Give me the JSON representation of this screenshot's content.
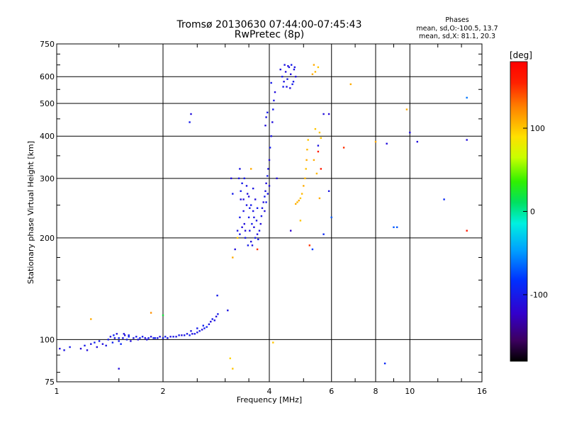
{
  "chart_data": {
    "type": "scatter",
    "title": "Tromsø 20130630 07:44:00-07:45:43",
    "subtitle": "RwPretec (8p)",
    "stats": {
      "heading": "Phases",
      "line1": "mean, sd,O:-100.5, 13.7",
      "line2": "mean, sd,X:  81.1, 20.3"
    },
    "xlabel": "Frequency [MHz]",
    "ylabel": "Stationary phase Virtual Height [km]",
    "x_scale": "log",
    "y_scale": "log",
    "xlim": [
      1,
      16
    ],
    "ylim": [
      75,
      750
    ],
    "x_ticks": [
      1,
      2,
      4,
      6,
      8,
      10,
      16
    ],
    "x_tick_labels": [
      "1",
      "2",
      "4",
      "6",
      "8",
      "10",
      "16"
    ],
    "y_ticks": [
      75,
      100,
      200,
      300,
      400,
      500,
      600,
      750
    ],
    "y_tick_labels": [
      "75",
      "100",
      "200",
      "300",
      "400",
      "500",
      "600",
      "750"
    ],
    "grid": true,
    "colorbar": {
      "label": "[deg]",
      "range": [
        -180,
        180
      ],
      "ticks": [
        100,
        0,
        -100
      ],
      "tick_labels": [
        "100",
        "0",
        "-100"
      ]
    },
    "points": [
      [
        1.02,
        94,
        -110
      ],
      [
        1.05,
        93,
        -105
      ],
      [
        1.09,
        95,
        -100
      ],
      [
        1.17,
        94,
        -115
      ],
      [
        1.2,
        96,
        -100
      ],
      [
        1.22,
        93,
        -110
      ],
      [
        1.25,
        97,
        -105
      ],
      [
        1.28,
        98,
        -95
      ],
      [
        1.3,
        95,
        -110
      ],
      [
        1.32,
        99,
        -100
      ],
      [
        1.35,
        97,
        -110
      ],
      [
        1.38,
        96,
        -105
      ],
      [
        1.4,
        100,
        -100
      ],
      [
        1.42,
        102,
        -110
      ],
      [
        1.44,
        98,
        -95
      ],
      [
        1.46,
        101,
        -105
      ],
      [
        1.48,
        104,
        -110
      ],
      [
        1.5,
        99,
        -100
      ],
      [
        1.52,
        97,
        -90
      ],
      [
        1.54,
        101,
        -105
      ],
      [
        1.56,
        103,
        -110
      ],
      [
        1.58,
        100,
        -100
      ],
      [
        1.6,
        102,
        -95
      ],
      [
        1.62,
        99,
        -110
      ],
      [
        1.65,
        101,
        -105
      ],
      [
        1.68,
        102,
        -100
      ],
      [
        1.7,
        100,
        -110
      ],
      [
        1.72,
        101,
        -95
      ],
      [
        1.75,
        102,
        -100
      ],
      [
        1.78,
        101,
        -110
      ],
      [
        1.8,
        100,
        -105
      ],
      [
        1.82,
        101,
        -100
      ],
      [
        1.85,
        102,
        -110
      ],
      [
        1.88,
        101,
        -100
      ],
      [
        1.9,
        101,
        -95
      ],
      [
        1.93,
        101,
        -105
      ],
      [
        1.96,
        102,
        -110
      ],
      [
        2.0,
        101,
        -100
      ],
      [
        2.03,
        102,
        -95
      ],
      [
        2.06,
        101,
        -105
      ],
      [
        2.1,
        102,
        -110
      ],
      [
        2.14,
        102,
        -100
      ],
      [
        2.18,
        102,
        -105
      ],
      [
        2.22,
        103,
        -100
      ],
      [
        2.26,
        103,
        -110
      ],
      [
        2.3,
        103,
        -100
      ],
      [
        2.34,
        104,
        -105
      ],
      [
        2.38,
        103,
        -95
      ],
      [
        2.42,
        104,
        -110
      ],
      [
        2.46,
        104,
        -100
      ],
      [
        2.5,
        105,
        -105
      ],
      [
        2.54,
        106,
        -100
      ],
      [
        2.58,
        107,
        -110
      ],
      [
        2.62,
        108,
        -100
      ],
      [
        2.66,
        109,
        -95
      ],
      [
        2.7,
        111,
        -105
      ],
      [
        2.73,
        113,
        -110
      ],
      [
        2.76,
        115,
        -100
      ],
      [
        2.8,
        114,
        -105
      ],
      [
        2.83,
        117,
        -110
      ],
      [
        2.86,
        119,
        -100
      ],
      [
        2.6,
        110,
        -95
      ],
      [
        2.5,
        108,
        -100
      ],
      [
        2.4,
        106,
        -105
      ],
      [
        1.5,
        101,
        -95
      ],
      [
        1.55,
        104,
        -110
      ],
      [
        1.6,
        103,
        -100
      ],
      [
        1.45,
        103,
        -90
      ],
      [
        1.5,
        82,
        -110
      ],
      [
        2.85,
        135,
        -100
      ],
      [
        3.05,
        122,
        -105
      ],
      [
        3.2,
        185,
        -110
      ],
      [
        3.25,
        210,
        -105
      ],
      [
        3.3,
        230,
        -100
      ],
      [
        3.32,
        260,
        -110
      ],
      [
        3.35,
        290,
        -100
      ],
      [
        3.38,
        240,
        -105
      ],
      [
        3.4,
        220,
        -110
      ],
      [
        3.42,
        200,
        -100
      ],
      [
        3.45,
        250,
        -105
      ],
      [
        3.47,
        270,
        -110
      ],
      [
        3.5,
        230,
        -100
      ],
      [
        3.52,
        210,
        -105
      ],
      [
        3.55,
        195,
        -110
      ],
      [
        3.57,
        220,
        -100
      ],
      [
        3.6,
        240,
        -105
      ],
      [
        3.62,
        215,
        -110
      ],
      [
        3.65,
        200,
        -100
      ],
      [
        3.68,
        225,
        -105
      ],
      [
        3.7,
        205,
        -110
      ],
      [
        3.72,
        198,
        -100
      ],
      [
        3.75,
        210,
        -105
      ],
      [
        3.78,
        220,
        -110
      ],
      [
        3.8,
        232,
        -100
      ],
      [
        3.82,
        245,
        -105
      ],
      [
        3.85,
        255,
        -110
      ],
      [
        3.88,
        265,
        -100
      ],
      [
        3.9,
        275,
        -105
      ],
      [
        3.92,
        290,
        -110
      ],
      [
        3.95,
        305,
        -100
      ],
      [
        3.97,
        320,
        -105
      ],
      [
        4.0,
        340,
        -110
      ],
      [
        4.02,
        370,
        -100
      ],
      [
        4.05,
        400,
        -105
      ],
      [
        4.08,
        440,
        -110
      ],
      [
        4.1,
        480,
        -100
      ],
      [
        4.12,
        510,
        -105
      ],
      [
        4.15,
        540,
        -110
      ],
      [
        3.4,
        300,
        -100
      ],
      [
        3.45,
        285,
        -105
      ],
      [
        3.5,
        265,
        -110
      ],
      [
        3.55,
        250,
        -100
      ],
      [
        3.6,
        280,
        -105
      ],
      [
        3.65,
        260,
        -110
      ],
      [
        3.7,
        245,
        -100
      ],
      [
        3.3,
        205,
        -100
      ],
      [
        3.35,
        215,
        -110
      ],
      [
        3.58,
        190,
        -105
      ],
      [
        3.48,
        190,
        -100
      ],
      [
        3.42,
        210,
        -110
      ],
      [
        3.52,
        245,
        -100
      ],
      [
        3.62,
        230,
        -105
      ],
      [
        3.38,
        260,
        -110
      ],
      [
        3.32,
        275,
        -100
      ],
      [
        3.28,
        300,
        -105
      ],
      [
        3.88,
        240,
        -110
      ],
      [
        3.92,
        255,
        -100
      ],
      [
        3.96,
        270,
        -105
      ],
      [
        4.0,
        285,
        -110
      ],
      [
        3.95,
        470,
        -100
      ],
      [
        3.92,
        455,
        -105
      ],
      [
        3.9,
        430,
        -110
      ],
      [
        4.05,
        575,
        -100
      ],
      [
        4.3,
        630,
        -110
      ],
      [
        4.35,
        600,
        -100
      ],
      [
        4.4,
        580,
        -105
      ],
      [
        4.45,
        620,
        -110
      ],
      [
        4.5,
        590,
        -100
      ],
      [
        4.55,
        640,
        -105
      ],
      [
        4.6,
        610,
        -110
      ],
      [
        4.65,
        570,
        -100
      ],
      [
        4.7,
        630,
        -105
      ],
      [
        4.75,
        600,
        -110
      ],
      [
        4.38,
        560,
        -100
      ],
      [
        4.48,
        560,
        -105
      ],
      [
        4.58,
        555,
        -110
      ],
      [
        4.68,
        580,
        -100
      ],
      [
        4.42,
        650,
        -105
      ],
      [
        4.52,
        645,
        -110
      ],
      [
        4.62,
        650,
        -100
      ],
      [
        4.72,
        640,
        -105
      ],
      [
        4.75,
        252,
        110
      ],
      [
        4.8,
        255,
        105
      ],
      [
        4.85,
        258,
        110
      ],
      [
        4.9,
        262,
        100
      ],
      [
        4.95,
        270,
        105
      ],
      [
        5.0,
        285,
        110
      ],
      [
        5.05,
        300,
        105
      ],
      [
        5.08,
        320,
        100
      ],
      [
        5.1,
        340,
        110
      ],
      [
        5.12,
        365,
        105
      ],
      [
        5.15,
        390,
        100
      ],
      [
        5.3,
        610,
        110
      ],
      [
        5.4,
        620,
        105
      ],
      [
        5.5,
        640,
        100
      ],
      [
        5.35,
        650,
        110
      ],
      [
        5.6,
        395,
        100
      ],
      [
        5.45,
        310,
        105
      ],
      [
        5.35,
        340,
        110
      ],
      [
        4.9,
        225,
        100
      ],
      [
        3.15,
        175,
        110
      ],
      [
        3.25,
        200,
        100
      ],
      [
        3.55,
        320,
        110
      ],
      [
        6.8,
        570,
        110
      ],
      [
        9.8,
        480,
        110
      ],
      [
        1.25,
        115,
        110
      ],
      [
        1.85,
        120,
        120
      ],
      [
        3.1,
        88,
        95
      ],
      [
        3.15,
        82,
        100
      ],
      [
        4.1,
        98,
        100
      ],
      [
        2.0,
        118,
        20
      ],
      [
        2.4,
        465,
        -110
      ],
      [
        2.38,
        440,
        -100
      ],
      [
        3.12,
        300,
        -110
      ],
      [
        3.15,
        270,
        -100
      ],
      [
        3.3,
        320,
        -105
      ],
      [
        4.2,
        300,
        -110
      ],
      [
        4.6,
        210,
        -120
      ],
      [
        5.2,
        190,
        150
      ],
      [
        5.3,
        185,
        -80
      ],
      [
        5.7,
        205,
        -90
      ],
      [
        5.9,
        465,
        -115
      ],
      [
        5.7,
        465,
        -110
      ],
      [
        5.9,
        275,
        -105
      ],
      [
        6.0,
        230,
        -70
      ],
      [
        5.5,
        375,
        -105
      ],
      [
        6.5,
        370,
        150
      ],
      [
        8.6,
        380,
        -110
      ],
      [
        8.5,
        85,
        -90
      ],
      [
        9.0,
        215,
        -70
      ],
      [
        9.2,
        215,
        -70
      ],
      [
        10.0,
        410,
        -110
      ],
      [
        10.5,
        385,
        -110
      ],
      [
        12.5,
        260,
        -90
      ],
      [
        14.5,
        390,
        -110
      ],
      [
        14.5,
        520,
        -60
      ],
      [
        14.5,
        210,
        160
      ],
      [
        5.4,
        420,
        100
      ],
      [
        5.55,
        410,
        100
      ],
      [
        5.5,
        360,
        160
      ],
      [
        5.6,
        320,
        160
      ],
      [
        3.7,
        185,
        150
      ],
      [
        5.55,
        262,
        110
      ],
      [
        8.0,
        385,
        110
      ]
    ]
  }
}
